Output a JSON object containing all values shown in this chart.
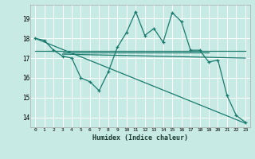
{
  "xlabel": "Humidex (Indice chaleur)",
  "background_color": "#c8eae4",
  "grid_color": "#ffffff",
  "line_color": "#1a7a6e",
  "xlim": [
    -0.5,
    23.5
  ],
  "ylim": [
    13.5,
    19.7
  ],
  "yticks": [
    14,
    15,
    16,
    17,
    18,
    19
  ],
  "xticks": [
    0,
    1,
    2,
    3,
    4,
    5,
    6,
    7,
    8,
    9,
    10,
    11,
    12,
    13,
    14,
    15,
    16,
    17,
    18,
    19,
    20,
    21,
    22,
    23
  ],
  "line1_x": [
    0,
    1,
    2,
    3,
    4,
    5,
    6,
    7,
    8,
    9,
    10,
    11,
    12,
    13,
    14,
    15,
    16,
    17,
    18,
    19,
    20,
    21,
    22,
    23
  ],
  "line1_y": [
    18.0,
    17.9,
    17.4,
    17.1,
    17.0,
    16.0,
    15.8,
    15.35,
    16.3,
    17.55,
    18.3,
    19.35,
    18.15,
    18.5,
    17.8,
    19.3,
    18.85,
    17.4,
    17.4,
    16.8,
    16.9,
    15.1,
    14.1,
    13.75
  ],
  "line2_x": [
    0,
    23
  ],
  "line2_y": [
    18.0,
    13.7
  ],
  "line3_x": [
    0,
    23
  ],
  "line3_y": [
    17.35,
    17.35
  ],
  "line4_x": [
    3,
    23
  ],
  "line4_y": [
    17.2,
    17.0
  ],
  "line5_x": [
    3,
    19
  ],
  "line5_y": [
    17.3,
    17.3
  ]
}
